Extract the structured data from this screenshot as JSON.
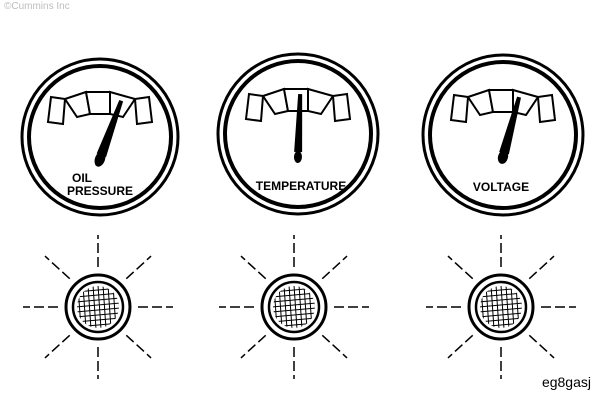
{
  "copyright": "©Cummins Inc",
  "figure_id": "eg8gasj",
  "gauges": [
    {
      "label_line1": "OIL",
      "label_line2": "PRESSURE",
      "needle_angle_deg": 20
    },
    {
      "label_line1": "",
      "label_line2": "TEMPERATURE",
      "needle_angle_deg": 2
    },
    {
      "label_line1": "",
      "label_line2": "VOLTAGE",
      "needle_angle_deg": 15
    }
  ],
  "lamps": [
    {
      "state": "lit"
    },
    {
      "state": "lit"
    },
    {
      "state": "lit"
    }
  ],
  "colors": {
    "ink": "#000000",
    "paper": "#ffffff"
  }
}
